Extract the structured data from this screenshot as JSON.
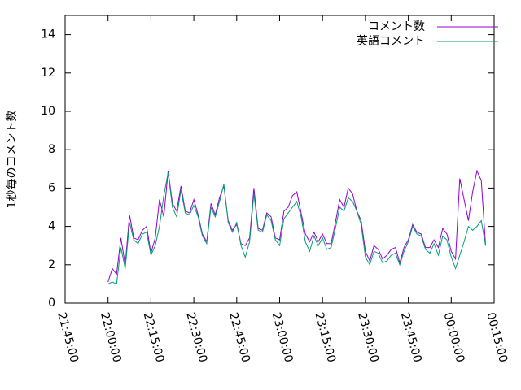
{
  "chart_data": {
    "type": "line",
    "y_label": "1秒毎のコメント数",
    "x": [
      "22:00:00",
      "22:01:30",
      "22:03:00",
      "22:04:30",
      "22:06:00",
      "22:07:30",
      "22:09:00",
      "22:10:30",
      "22:12:00",
      "22:13:30",
      "22:15:00",
      "22:16:30",
      "22:18:00",
      "22:19:30",
      "22:21:00",
      "22:22:30",
      "22:24:00",
      "22:25:30",
      "22:27:00",
      "22:28:30",
      "22:30:00",
      "22:31:30",
      "22:33:00",
      "22:34:30",
      "22:36:00",
      "22:37:30",
      "22:39:00",
      "22:40:30",
      "22:42:00",
      "22:43:30",
      "22:45:00",
      "22:46:30",
      "22:48:00",
      "22:49:30",
      "22:51:00",
      "22:52:30",
      "22:54:00",
      "22:55:30",
      "22:57:00",
      "22:58:30",
      "23:00:00",
      "23:01:30",
      "23:03:00",
      "23:04:30",
      "23:06:00",
      "23:07:30",
      "23:09:00",
      "23:10:30",
      "23:12:00",
      "23:13:30",
      "23:15:00",
      "23:16:30",
      "23:18:00",
      "23:19:30",
      "23:21:00",
      "23:22:30",
      "23:24:00",
      "23:25:30",
      "23:27:00",
      "23:28:30",
      "23:30:00",
      "23:31:30",
      "23:33:00",
      "23:34:30",
      "23:36:00",
      "23:37:30",
      "23:39:00",
      "23:40:30",
      "23:42:00",
      "23:43:30",
      "23:45:00",
      "23:46:30",
      "23:48:00",
      "23:49:30",
      "23:51:00",
      "23:52:30",
      "23:54:00",
      "23:55:30",
      "23:57:00",
      "23:58:30",
      "00:00:00",
      "00:01:30",
      "00:03:00",
      "00:04:30",
      "00:06:00",
      "00:07:30",
      "00:09:00",
      "00:10:30",
      "00:12:00"
    ],
    "series": [
      {
        "name": "コメント数",
        "color": "#9400d3",
        "values": [
          1.1,
          1.8,
          1.5,
          3.4,
          2.0,
          4.6,
          3.4,
          3.3,
          3.8,
          4.0,
          2.6,
          3.4,
          5.4,
          4.5,
          6.9,
          5.2,
          4.8,
          6.1,
          4.8,
          4.7,
          5.4,
          4.6,
          3.6,
          3.2,
          5.2,
          4.6,
          5.5,
          6.1,
          4.3,
          3.8,
          4.1,
          3.1,
          3.0,
          3.4,
          6.0,
          3.9,
          3.8,
          4.7,
          4.5,
          3.4,
          3.3,
          4.8,
          5.0,
          5.6,
          5.8,
          4.7,
          3.6,
          3.2,
          3.7,
          3.2,
          3.6,
          3.1,
          3.1,
          4.2,
          5.4,
          5.0,
          6.0,
          5.7,
          4.8,
          4.3,
          2.7,
          2.2,
          3.0,
          2.8,
          2.3,
          2.5,
          2.8,
          2.9,
          2.1,
          2.9,
          3.3,
          4.1,
          3.7,
          3.6,
          2.9,
          2.9,
          3.3,
          2.9,
          3.9,
          3.6,
          2.7,
          2.3,
          6.5,
          5.4,
          4.3,
          5.8,
          6.9,
          6.4,
          3.0
        ]
      },
      {
        "name": "英語コメント",
        "color": "#009e73",
        "values": [
          1.0,
          1.1,
          1.0,
          2.9,
          1.8,
          4.2,
          3.3,
          3.1,
          3.6,
          3.7,
          2.5,
          3.0,
          4.0,
          5.6,
          6.8,
          5.0,
          4.5,
          5.9,
          4.7,
          4.6,
          5.1,
          4.5,
          3.5,
          3.1,
          5.0,
          4.5,
          5.3,
          6.2,
          4.2,
          3.7,
          4.2,
          3.0,
          2.4,
          3.2,
          5.7,
          3.8,
          3.7,
          4.6,
          4.3,
          3.3,
          3.0,
          4.4,
          4.7,
          5.0,
          5.3,
          4.5,
          3.2,
          2.7,
          3.5,
          3.0,
          3.4,
          2.8,
          2.9,
          3.9,
          5.0,
          4.8,
          5.5,
          5.3,
          4.8,
          4.1,
          2.4,
          2.0,
          2.7,
          2.6,
          2.1,
          2.2,
          2.5,
          2.6,
          2.0,
          2.7,
          3.2,
          4.0,
          3.6,
          3.5,
          2.8,
          2.6,
          3.1,
          2.5,
          3.5,
          3.3,
          2.4,
          1.8,
          2.5,
          3.2,
          4.0,
          3.8,
          4.0,
          4.3,
          3.0
        ]
      }
    ],
    "xlim": [
      "21:45:00",
      "00:15:00"
    ],
    "xticks": [
      "21:45:00",
      "22:00:00",
      "22:15:00",
      "22:30:00",
      "22:45:00",
      "23:00:00",
      "23:15:00",
      "23:30:00",
      "23:45:00",
      "00:00:00",
      "00:15:00"
    ],
    "ylim": [
      0,
      15
    ],
    "yticks": [
      0,
      2,
      4,
      6,
      8,
      10,
      12,
      14
    ],
    "legend": "top-right"
  }
}
